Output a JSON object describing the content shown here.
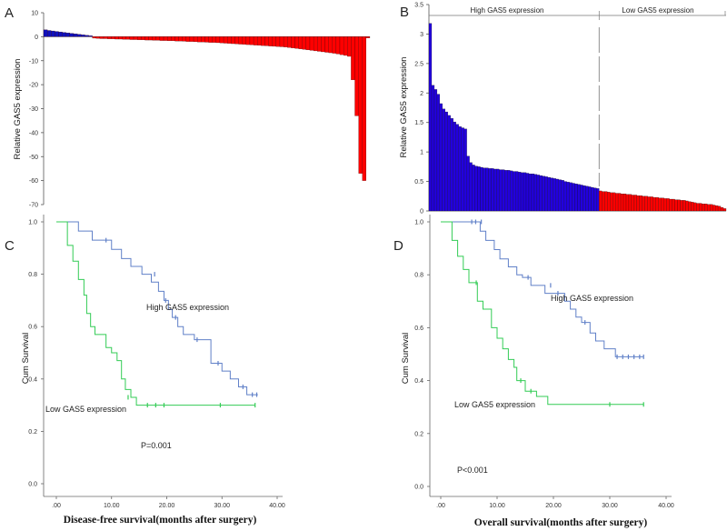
{
  "chart_data": [
    {
      "panel": "A",
      "type": "bar",
      "ylabel": "Relative GAS5 expression",
      "ylim": [
        -70,
        10
      ],
      "yticks": [
        10,
        0,
        -10,
        -20,
        -30,
        -40,
        -50,
        -60,
        -70
      ],
      "colors": {
        "positive": "#1010bb",
        "negative": "#ff0000"
      },
      "values": [
        2.9,
        2.6,
        2.4,
        2.2,
        2.0,
        1.8,
        1.6,
        1.4,
        1.2,
        1.0,
        0.8,
        0.6,
        0.4,
        -0.6,
        -0.7,
        -0.8,
        -0.8,
        -0.9,
        -0.9,
        -1.0,
        -1.0,
        -1.1,
        -1.1,
        -1.2,
        -1.2,
        -1.3,
        -1.3,
        -1.4,
        -1.4,
        -1.5,
        -1.5,
        -1.6,
        -1.6,
        -1.7,
        -1.7,
        -1.8,
        -1.8,
        -1.9,
        -2.0,
        -2.0,
        -2.1,
        -2.2,
        -2.2,
        -2.3,
        -2.4,
        -2.4,
        -2.5,
        -2.6,
        -2.7,
        -2.8,
        -2.9,
        -3.0,
        -3.1,
        -3.2,
        -3.3,
        -3.4,
        -3.5,
        -3.6,
        -3.7,
        -3.8,
        -3.9,
        -4.0,
        -4.1,
        -4.2,
        -4.3,
        -4.5,
        -4.7,
        -4.9,
        -5.1,
        -5.3,
        -5.5,
        -5.7,
        -5.9,
        -6.1,
        -6.3,
        -6.5,
        -6.7,
        -6.9,
        -7.2,
        -7.5,
        -7.8,
        -8.2,
        -18,
        -33,
        -57,
        -60,
        -0.5
      ]
    },
    {
      "panel": "B",
      "type": "bar",
      "ylabel": "Relative GAS5 expression",
      "ylim": [
        0,
        3.5
      ],
      "yticks": [
        "0",
        "0.5",
        "1",
        "1.5",
        "2",
        "2.5",
        "3",
        "3.5"
      ],
      "groups": [
        "High GAS5 expression",
        "Low GAS5 expression"
      ],
      "colors": {
        "high": "#2200dd",
        "low": "#ff0000"
      },
      "split_index": 63,
      "values": [
        3.18,
        2.13,
        2.06,
        1.98,
        1.82,
        1.73,
        1.68,
        1.62,
        1.57,
        1.51,
        1.47,
        1.43,
        1.41,
        1.39,
        0.93,
        0.82,
        0.78,
        0.76,
        0.75,
        0.74,
        0.73,
        0.73,
        0.72,
        0.72,
        0.71,
        0.71,
        0.7,
        0.7,
        0.69,
        0.69,
        0.68,
        0.67,
        0.67,
        0.66,
        0.65,
        0.65,
        0.64,
        0.63,
        0.63,
        0.62,
        0.61,
        0.6,
        0.59,
        0.58,
        0.57,
        0.56,
        0.55,
        0.54,
        0.53,
        0.52,
        0.5,
        0.49,
        0.48,
        0.47,
        0.46,
        0.45,
        0.44,
        0.43,
        0.42,
        0.41,
        0.4,
        0.39,
        0.38,
        0.34,
        0.33,
        0.33,
        0.32,
        0.31,
        0.31,
        0.3,
        0.3,
        0.29,
        0.29,
        0.28,
        0.28,
        0.27,
        0.27,
        0.26,
        0.26,
        0.25,
        0.25,
        0.24,
        0.24,
        0.23,
        0.23,
        0.22,
        0.22,
        0.21,
        0.21,
        0.2,
        0.2,
        0.19,
        0.19,
        0.18,
        0.18,
        0.17,
        0.16,
        0.15,
        0.14,
        0.13,
        0.13,
        0.12,
        0.12,
        0.11,
        0.11,
        0.1,
        0.09,
        0.08,
        0.06,
        0.04
      ]
    },
    {
      "panel": "C",
      "type": "line",
      "subtype": "kaplan-meier",
      "xlabel": "Disease-free survival(months after surgery)",
      "ylabel": "Cum Survival",
      "xlim": [
        0,
        40
      ],
      "ylim": [
        0,
        1
      ],
      "xticks": [
        ".00",
        "10.00",
        "20.00",
        "30.00",
        "40.00"
      ],
      "yticks": [
        "0.0",
        "0.2",
        "0.4",
        "0.6",
        "0.8",
        "1.0"
      ],
      "annotation": "P=0.001",
      "series": [
        {
          "name": "High GAS5 expression",
          "color": "#6080c8",
          "steps": [
            [
              0,
              1.0
            ],
            [
              4,
              0.965
            ],
            [
              6.5,
              0.93
            ],
            [
              10,
              0.895
            ],
            [
              11.8,
              0.86
            ],
            [
              13.5,
              0.83
            ],
            [
              15.5,
              0.8
            ],
            [
              17.2,
              0.77
            ],
            [
              18.5,
              0.735
            ],
            [
              19.5,
              0.7
            ],
            [
              20.3,
              0.665
            ],
            [
              21,
              0.635
            ],
            [
              22,
              0.6
            ],
            [
              23,
              0.57
            ],
            [
              25,
              0.55
            ],
            [
              28,
              0.46
            ],
            [
              30,
              0.43
            ],
            [
              31.5,
              0.4
            ],
            [
              33,
              0.37
            ],
            [
              34.5,
              0.34
            ],
            [
              36.5,
              0.34
            ]
          ],
          "censored": [
            [
              9,
              0.93
            ],
            [
              17.8,
              0.8
            ],
            [
              19.8,
              0.7
            ],
            [
              21.6,
              0.635
            ],
            [
              25.5,
              0.55
            ],
            [
              29.3,
              0.46
            ],
            [
              33.8,
              0.37
            ],
            [
              35.5,
              0.34
            ],
            [
              36.3,
              0.34
            ]
          ]
        },
        {
          "name": "Low GAS5 expression",
          "color": "#33cc55",
          "steps": [
            [
              0,
              1.0
            ],
            [
              2,
              0.91
            ],
            [
              3,
              0.85
            ],
            [
              4,
              0.78
            ],
            [
              5,
              0.72
            ],
            [
              5.5,
              0.65
            ],
            [
              6.2,
              0.6
            ],
            [
              7,
              0.57
            ],
            [
              9,
              0.52
            ],
            [
              10,
              0.5
            ],
            [
              11,
              0.47
            ],
            [
              11.8,
              0.4
            ],
            [
              12.5,
              0.36
            ],
            [
              13.5,
              0.33
            ],
            [
              14.5,
              0.3
            ],
            [
              36,
              0.3
            ]
          ],
          "censored": [
            [
              13,
              0.33
            ],
            [
              16.5,
              0.3
            ],
            [
              18,
              0.3
            ],
            [
              19.5,
              0.3
            ],
            [
              29.7,
              0.3
            ],
            [
              36,
              0.3
            ]
          ]
        }
      ]
    },
    {
      "panel": "D",
      "type": "line",
      "subtype": "kaplan-meier",
      "xlabel": "Overall survival(months after surgery)",
      "ylabel": "Cum Survival",
      "xlim": [
        0,
        40
      ],
      "ylim": [
        0,
        1
      ],
      "xticks": [
        ".00",
        "10.00",
        "20.00",
        "30.00",
        "40.00"
      ],
      "yticks": [
        "0.0",
        "0.2",
        "0.4",
        "0.6",
        "0.8",
        "1.0"
      ],
      "annotation": "P<0.001",
      "series": [
        {
          "name": "High GAS5 expression",
          "color": "#6080c8",
          "steps": [
            [
              0,
              1.0
            ],
            [
              7,
              0.965
            ],
            [
              8,
              0.93
            ],
            [
              9.5,
              0.895
            ],
            [
              10.5,
              0.86
            ],
            [
              12,
              0.83
            ],
            [
              13.5,
              0.8
            ],
            [
              14.5,
              0.79
            ],
            [
              16,
              0.76
            ],
            [
              18.5,
              0.73
            ],
            [
              22,
              0.7
            ],
            [
              23,
              0.67
            ],
            [
              24,
              0.64
            ],
            [
              25,
              0.62
            ],
            [
              26.5,
              0.58
            ],
            [
              27.5,
              0.55
            ],
            [
              29,
              0.52
            ],
            [
              31,
              0.49
            ],
            [
              36,
              0.49
            ]
          ],
          "censored": [
            [
              5.5,
              1.0
            ],
            [
              6.2,
              1.0
            ],
            [
              7.2,
              1.0
            ],
            [
              15.5,
              0.79
            ],
            [
              19.5,
              0.76
            ],
            [
              20.8,
              0.73
            ],
            [
              25.6,
              0.62
            ],
            [
              31.3,
              0.49
            ],
            [
              32.3,
              0.49
            ],
            [
              33.3,
              0.49
            ],
            [
              34.3,
              0.49
            ],
            [
              35.3,
              0.49
            ],
            [
              36,
              0.49
            ]
          ]
        },
        {
          "name": "Low GAS5 expression",
          "color": "#33cc55",
          "steps": [
            [
              0,
              1.0
            ],
            [
              2,
              0.93
            ],
            [
              3,
              0.87
            ],
            [
              4,
              0.82
            ],
            [
              5,
              0.77
            ],
            [
              6.5,
              0.7
            ],
            [
              7.5,
              0.67
            ],
            [
              9,
              0.6
            ],
            [
              10,
              0.56
            ],
            [
              11,
              0.52
            ],
            [
              12,
              0.48
            ],
            [
              13,
              0.45
            ],
            [
              13.5,
              0.4
            ],
            [
              15,
              0.36
            ],
            [
              17,
              0.34
            ],
            [
              19,
              0.31
            ],
            [
              36,
              0.31
            ]
          ],
          "censored": [
            [
              6.3,
              0.77
            ],
            [
              14.2,
              0.4
            ],
            [
              16,
              0.36
            ],
            [
              30,
              0.31
            ],
            [
              36,
              0.31
            ]
          ]
        }
      ]
    }
  ],
  "panel_labels": [
    "A",
    "B",
    "C",
    "D"
  ]
}
